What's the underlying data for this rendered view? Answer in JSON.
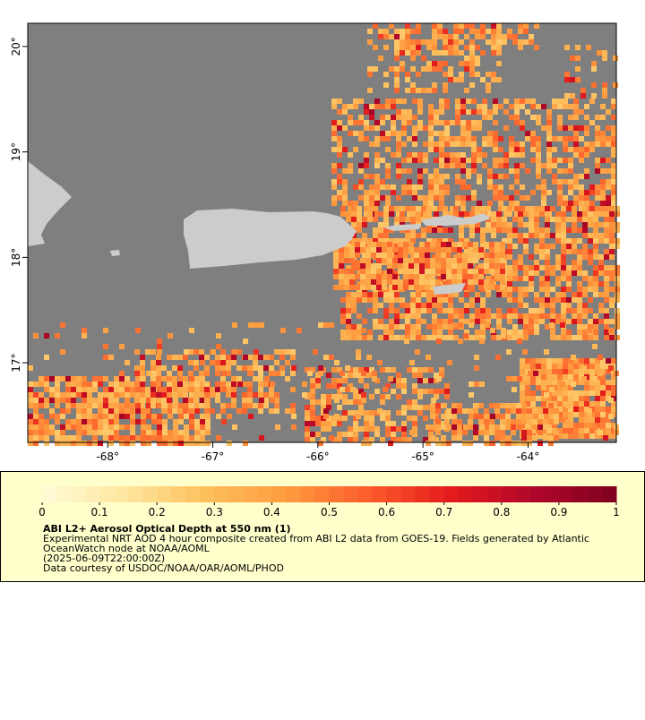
{
  "map": {
    "xlim": [
      -68.76,
      -63.16
    ],
    "ylim": [
      16.245,
      20.22
    ],
    "xticks": [
      {
        "value": -68,
        "label": "-68°"
      },
      {
        "value": -67,
        "label": "-67°"
      },
      {
        "value": -66,
        "label": "-66°"
      },
      {
        "value": -65,
        "label": "-65°"
      },
      {
        "value": -64,
        "label": "-64°"
      }
    ],
    "yticks": [
      {
        "value": 17,
        "label": "17°"
      },
      {
        "value": 18,
        "label": "18°"
      },
      {
        "value": 19,
        "label": "19°"
      },
      {
        "value": 20,
        "label": "20°"
      }
    ]
  },
  "colorbar": {
    "ticks": [
      0,
      {
        "value": 0.1,
        "label": "0.1"
      },
      {
        "value": 0.2,
        "label": "0.2"
      },
      {
        "value": 0.3,
        "label": "0.3"
      },
      {
        "value": 0.4,
        "label": "0.4"
      },
      {
        "value": 0.5,
        "label": "0.5"
      },
      {
        "value": 0.6,
        "label": "0.6"
      },
      {
        "value": 0.7,
        "label": "0.7"
      },
      {
        "value": 0.8,
        "label": "0.8"
      },
      {
        "value": 0.9,
        "label": "0.9"
      },
      1
    ],
    "colors": [
      "#fffcd8",
      "#ffe7a0",
      "#fdbf5c",
      "#fd9a3e",
      "#fc5a2b",
      "#e31a1c",
      "#b0062a",
      "#7f0020"
    ]
  },
  "caption": {
    "title": "ABI L2+ Aerosol Optical Depth at 550 nm (1)",
    "lines": [
      "Experimental NRT AOD 4 hour composite created from ABI L2 data from GOES-19. Fields generated by Atlantic",
      "OceanWatch node at NOAA/AOML",
      "(2025-06-09T22:00:00Z)",
      "Data courtesy of USDOC/NOAA/OAR/AOML/PHOD"
    ]
  }
}
